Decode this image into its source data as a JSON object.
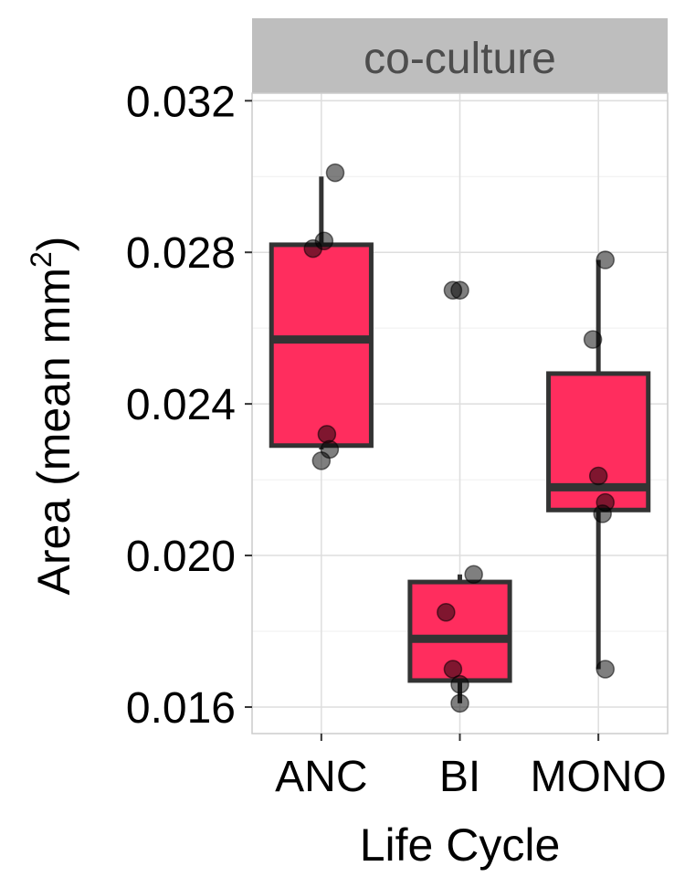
{
  "chart_data": {
    "type": "box",
    "facet_label": "co-culture",
    "xlabel": "Life Cycle",
    "ylabel": "Area (mean mm",
    "ylabel_superscript": "2",
    "ylabel_close": ")",
    "categories": [
      "ANC",
      "BI",
      "MONO"
    ],
    "yticks": [
      "0.016",
      "0.020",
      "0.024",
      "0.028",
      "0.032"
    ],
    "ylim": [
      0.0153,
      0.0322
    ],
    "grid": true,
    "box_color": "#ff2d5e",
    "edge_color": "#333333",
    "strip_color": "#bebebe",
    "boxes": [
      {
        "category": "ANC",
        "whisker_low": 0.0228,
        "q1": 0.0229,
        "median": 0.0257,
        "q3": 0.0282,
        "whisker_high": 0.03
      },
      {
        "category": "BI",
        "whisker_low": 0.0161,
        "q1": 0.0167,
        "median": 0.0178,
        "q3": 0.0193,
        "whisker_high": 0.0195
      },
      {
        "category": "MONO",
        "whisker_low": 0.017,
        "q1": 0.0212,
        "median": 0.0218,
        "q3": 0.0248,
        "whisker_high": 0.0278
      }
    ],
    "points": [
      {
        "category": "ANC",
        "jitter": 0.1,
        "y": 0.0301
      },
      {
        "category": "ANC",
        "jitter": 0.02,
        "y": 0.0283
      },
      {
        "category": "ANC",
        "jitter": -0.06,
        "y": 0.0281
      },
      {
        "category": "ANC",
        "jitter": 0.04,
        "y": 0.0232
      },
      {
        "category": "ANC",
        "jitter": 0.06,
        "y": 0.0228
      },
      {
        "category": "ANC",
        "jitter": 0.0,
        "y": 0.0225
      },
      {
        "category": "BI",
        "jitter": -0.05,
        "y": 0.027
      },
      {
        "category": "BI",
        "jitter": 0.0,
        "y": 0.027
      },
      {
        "category": "BI",
        "jitter": 0.1,
        "y": 0.0195
      },
      {
        "category": "BI",
        "jitter": -0.1,
        "y": 0.0185
      },
      {
        "category": "BI",
        "jitter": -0.05,
        "y": 0.017
      },
      {
        "category": "BI",
        "jitter": 0.0,
        "y": 0.0166
      },
      {
        "category": "BI",
        "jitter": 0.0,
        "y": 0.0161
      },
      {
        "category": "MONO",
        "jitter": 0.05,
        "y": 0.0278
      },
      {
        "category": "MONO",
        "jitter": -0.04,
        "y": 0.0257
      },
      {
        "category": "MONO",
        "jitter": 0.0,
        "y": 0.0221
      },
      {
        "category": "MONO",
        "jitter": 0.05,
        "y": 0.0214
      },
      {
        "category": "MONO",
        "jitter": 0.03,
        "y": 0.0211
      },
      {
        "category": "MONO",
        "jitter": 0.05,
        "y": 0.017
      }
    ]
  }
}
